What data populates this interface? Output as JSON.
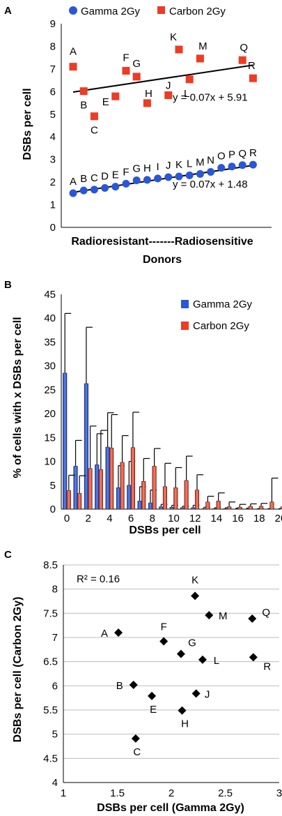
{
  "colors": {
    "gamma": "#2b56d6",
    "carbon": "#ee3b24",
    "black": "#000000",
    "grid": "#bdbdbd",
    "barGammaLight": "#5b86f0",
    "barCarbonLight": "#f4856f"
  },
  "chart_data": [
    {
      "panel": "A",
      "type": "scatter",
      "xlabel": "Donors",
      "x_category_label": "Radioresistant-------Radiosensitive",
      "ylabel": "DSBs per cell",
      "ylim": [
        0,
        9
      ],
      "yticks": [
        "0",
        "1",
        "2",
        "3",
        "4",
        "5",
        "6",
        "7",
        "8",
        "9"
      ],
      "grid": false,
      "legend_position": "top",
      "donors": [
        "A",
        "B",
        "C",
        "D",
        "E",
        "F",
        "G",
        "H",
        "I",
        "J",
        "K",
        "L",
        "M",
        "N",
        "O",
        "P",
        "Q",
        "R"
      ],
      "series": [
        {
          "name": "Gamma 2Gy",
          "marker": "circle",
          "values": [
            1.51,
            1.63,
            1.67,
            1.74,
            1.8,
            1.93,
            2.08,
            2.1,
            2.16,
            2.22,
            2.25,
            2.3,
            2.36,
            2.45,
            2.63,
            2.69,
            2.75,
            2.77
          ],
          "trend": {
            "label": "y = 0.07x + 1.48",
            "slope": 0.07,
            "intercept": 1.48
          }
        },
        {
          "name": "Carbon 2Gy",
          "marker": "square",
          "values": [
            7.1,
            6.02,
            4.91,
            null,
            5.79,
            6.92,
            6.66,
            5.49,
            null,
            5.84,
            7.86,
            6.54,
            7.46,
            null,
            null,
            null,
            7.39,
            6.59
          ],
          "trend": {
            "label": "y = 0.07x + 5.91",
            "slope": 0.07,
            "intercept": 5.91
          }
        }
      ],
      "gamma_labels_text": [
        "A",
        "B",
        "C",
        "D",
        "E",
        "F",
        "G",
        "H",
        "I",
        "J",
        "K",
        "L",
        "M",
        "N",
        "O",
        "P",
        "Q",
        "R"
      ],
      "carbon_labels": [
        "A",
        "B",
        "C",
        "E",
        "F",
        "G",
        "H",
        "J",
        "K",
        "L",
        "M",
        "Q",
        "R"
      ]
    },
    {
      "panel": "B",
      "type": "bar",
      "xlabel": "DSBs per cell",
      "ylabel": "% of cells with x DSBs per cell",
      "ylim": [
        0,
        45
      ],
      "yticks": [
        "0",
        "5",
        "10",
        "15",
        "20",
        "25",
        "30",
        "35",
        "40",
        "45"
      ],
      "xticks": [
        "0",
        "2",
        "4",
        "6",
        "8",
        "10",
        "12",
        "14",
        "16",
        "18",
        "20"
      ],
      "grid": false,
      "legend_position": "top-right",
      "categories": [
        "0",
        "1",
        "2",
        "3",
        "4",
        "5",
        "6",
        "7",
        "8",
        "9",
        "10",
        "11",
        "12",
        "13",
        "14",
        "15",
        "16",
        "17",
        "18",
        "19",
        "20"
      ],
      "series": [
        {
          "name": "Gamma 2Gy",
          "values": [
            28.5,
            9.0,
            26.3,
            9.3,
            13.0,
            4.5,
            5.0,
            1.7,
            1.3,
            0.5,
            0.4,
            0.3,
            0.3,
            0.1,
            0.1,
            0.1,
            0,
            0,
            0,
            0,
            0
          ],
          "errors": [
            12.5,
            5.4,
            11.8,
            6.5,
            7.2,
            4.6,
            5.0,
            3.0,
            2.7,
            0.5,
            0.4,
            0.3,
            0.5,
            0.3,
            0.2,
            0.2,
            0.2,
            0.2,
            0.1,
            0.1,
            0.1
          ]
        },
        {
          "name": "Carbon 2Gy",
          "values": [
            3.9,
            3.3,
            8.5,
            8.3,
            12.8,
            9.8,
            12.9,
            5.8,
            9.0,
            4.7,
            4.5,
            6.0,
            4.0,
            1.5,
            1.7,
            0.5,
            0.4,
            0.6,
            0.6,
            1.5,
            0.5
          ],
          "errors": [
            3.2,
            3.7,
            8.9,
            8.2,
            7.0,
            5.6,
            7.4,
            4.8,
            3.7,
            4.9,
            4.2,
            5.1,
            3.2,
            1.2,
            1.7,
            1.0,
            0.6,
            0.5,
            0.6,
            5.0,
            0.8
          ]
        }
      ]
    },
    {
      "panel": "C",
      "type": "scatter",
      "xlabel": "DSBs per cell (Gamma 2Gy)",
      "ylabel": "DSBs per cell (Carbon 2Gy)",
      "xlim": [
        1,
        3
      ],
      "ylim": [
        4,
        8.5
      ],
      "xticks": [
        "1",
        "1.5",
        "2",
        "2.5",
        "3"
      ],
      "yticks": [
        "4",
        "4.5",
        "5",
        "5.5",
        "6",
        "6.5",
        "7",
        "7.5",
        "8",
        "8.5"
      ],
      "grid": true,
      "annotation": "R² = 0.16",
      "points": [
        {
          "label": "A",
          "x": 1.51,
          "y": 7.1
        },
        {
          "label": "B",
          "x": 1.65,
          "y": 6.02
        },
        {
          "label": "C",
          "x": 1.67,
          "y": 4.91
        },
        {
          "label": "E",
          "x": 1.82,
          "y": 5.79
        },
        {
          "label": "F",
          "x": 1.93,
          "y": 6.92
        },
        {
          "label": "G",
          "x": 2.09,
          "y": 6.66
        },
        {
          "label": "H",
          "x": 2.1,
          "y": 5.49
        },
        {
          "label": "J",
          "x": 2.23,
          "y": 5.84
        },
        {
          "label": "K",
          "x": 2.22,
          "y": 7.86
        },
        {
          "label": "L",
          "x": 2.29,
          "y": 6.54
        },
        {
          "label": "M",
          "x": 2.35,
          "y": 7.46
        },
        {
          "label": "Q",
          "x": 2.75,
          "y": 7.39
        },
        {
          "label": "R",
          "x": 2.76,
          "y": 6.59
        }
      ]
    }
  ]
}
